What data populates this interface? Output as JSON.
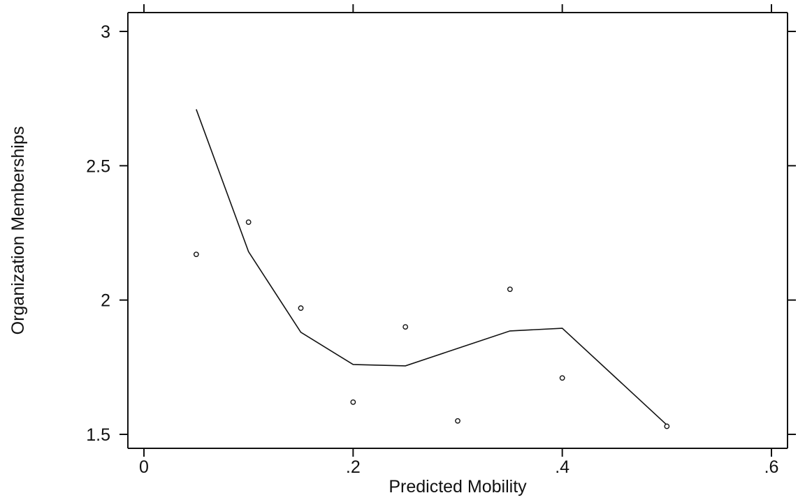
{
  "chart_data": {
    "type": "scatter",
    "title": "",
    "xlabel": "Predicted Mobility",
    "ylabel": "Organization Memberships",
    "xlim": [
      0,
      0.6
    ],
    "ylim": [
      1.5,
      3
    ],
    "x_ticks": [
      0,
      0.2,
      0.4,
      0.6
    ],
    "x_tick_labels": [
      "0",
      ".2",
      ".4",
      ".6"
    ],
    "y_ticks": [
      1.5,
      2,
      2.5,
      3
    ],
    "y_tick_labels": [
      "1.5",
      "2",
      "2.5",
      "3"
    ],
    "grid": false,
    "legend": "none",
    "colors": {
      "ink": "#111111",
      "background": "#ffffff"
    },
    "series": [
      {
        "kind": "scatter",
        "marker": "hollow-circle",
        "x": [
          0.05,
          0.1,
          0.15,
          0.2,
          0.25,
          0.3,
          0.35,
          0.4,
          0.5
        ],
        "y": [
          2.17,
          2.29,
          1.97,
          1.62,
          1.9,
          1.55,
          2.04,
          1.71,
          1.53
        ]
      },
      {
        "kind": "line",
        "x": [
          0.05,
          0.1,
          0.15,
          0.2,
          0.25,
          0.3,
          0.35,
          0.4,
          0.5
        ],
        "y": [
          2.71,
          2.18,
          1.88,
          1.76,
          1.755,
          1.82,
          1.885,
          1.895,
          1.535
        ]
      }
    ]
  }
}
